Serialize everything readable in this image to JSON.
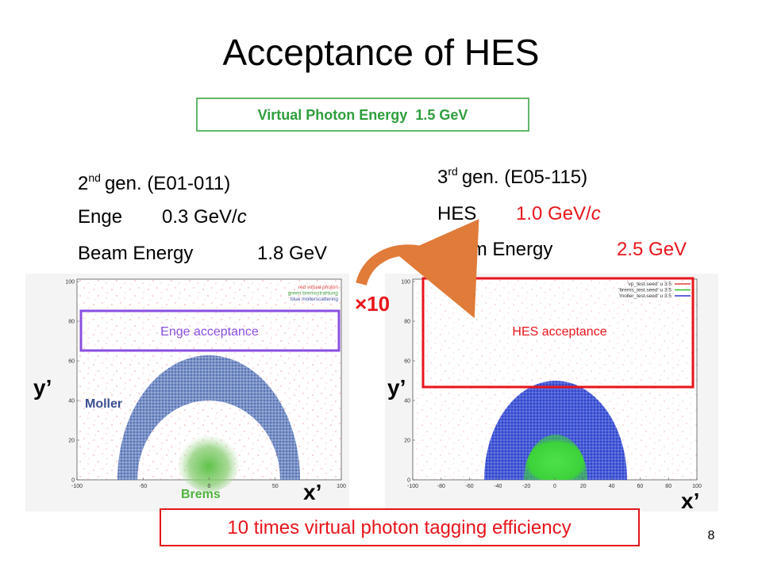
{
  "title": "Acceptance of HES",
  "energy_box": {
    "label": "Virtual Photon Energy",
    "value": "1.5 GeV"
  },
  "left": {
    "gen": {
      "number": "2",
      "sup": "nd",
      "text": "gen. (E01-011)"
    },
    "spectrometer": {
      "name": "Enge",
      "value": "0.3 GeV/",
      "unit": "c"
    },
    "beam": {
      "name": "Beam Energy",
      "value": "1.8 GeV"
    }
  },
  "right": {
    "gen": {
      "number": "3",
      "sup": "rd",
      "text": "gen. (E05-115)"
    },
    "spectrometer": {
      "name": "HES",
      "value": "1.0 GeV/",
      "unit": "c"
    },
    "beam": {
      "name": "Beam Energy",
      "value": "2.5 GeV"
    }
  },
  "factor": "×10",
  "left_plot": {
    "acceptance": "Enge acceptance",
    "y_label": "y’",
    "x_label": "x’",
    "legend": [
      "red virtual photon",
      "green bremsstrahlung",
      "blue mollerscattering"
    ],
    "xticks": [
      "-100",
      "-50",
      "0",
      "50",
      "100"
    ],
    "yticks": [
      "100",
      "80",
      "60",
      "40",
      "20",
      "0"
    ],
    "moller": "Moller",
    "brems": "Brems"
  },
  "right_plot": {
    "acceptance": "HES acceptance",
    "y_label": "y’",
    "x_label": "x’",
    "legend": [
      "'vp_test.seed' u 3:5",
      "'brems_test.seed' u 3:5",
      "'moller_test.seed' u 3:5"
    ],
    "xticks": [
      "-100",
      "-80",
      "-60",
      "-40",
      "-20",
      "0",
      "20",
      "40",
      "60",
      "80",
      "100"
    ],
    "yticks": [
      "100",
      "80",
      "60",
      "40",
      "20",
      "0"
    ]
  },
  "conclusion": "10 times virtual photon tagging efficiency",
  "page_number": "8"
}
